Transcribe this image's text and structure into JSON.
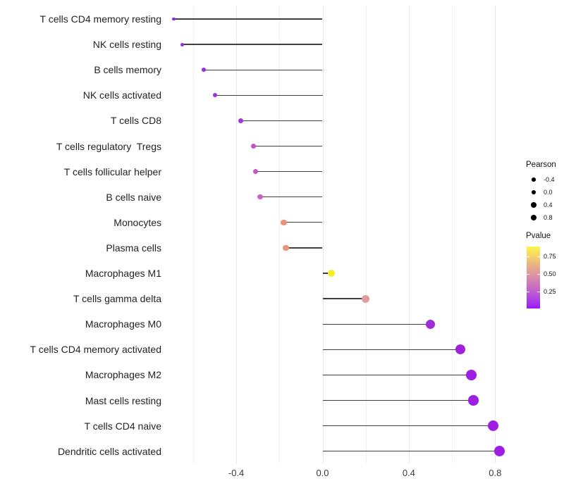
{
  "figure": {
    "background": "#ffffff",
    "legend_pearson": {
      "title": "Pearson",
      "dot_color": "#000000",
      "entries": [
        {
          "label": "-0.4",
          "diameter": 5.6
        },
        {
          "label": "0.0",
          "diameter": 6.9
        },
        {
          "label": "0.4",
          "diameter": 7.9
        },
        {
          "label": "0.8",
          "diameter": 8.9
        }
      ]
    },
    "legend_pvalue": {
      "title": "Pvalue",
      "labels": [
        "0.75",
        "0.50",
        "0.25"
      ],
      "gradient_top_to_bottom": [
        "#fcf44a",
        "#f8dd5f",
        "#f0c376",
        "#e7ab8b",
        "#de969e",
        "#d280b3",
        "#c76cc4",
        "#ba53d6",
        "#ab38e8",
        "#9b16f9"
      ]
    }
  },
  "chart_data": {
    "type": "lollipop",
    "orientation": "horizontal",
    "title": "",
    "xlabel": "",
    "ylabel": "",
    "x_tick_labels": [
      "-0.4",
      "0.0",
      "0.4",
      "0.8"
    ],
    "x_major_ticks": [
      -0.4,
      0.0,
      0.4,
      0.8
    ],
    "x_minor_ticks": [
      -0.6,
      -0.2,
      0.2,
      0.6
    ],
    "xlim": [
      -0.77,
      0.9
    ],
    "grid": "vertical major+minor, light gray on white",
    "legend_position": "right",
    "size_encodes": "Pearson correlation",
    "color_encodes": "Pvalue (yellow high to purple low)",
    "points": [
      {
        "label": "T cells CD4 memory resting",
        "pearson": -0.69,
        "pvalue_est": 0.03,
        "color": "#8f2ce4"
      },
      {
        "label": "NK cells resting",
        "pearson": -0.65,
        "pvalue_est": 0.04,
        "color": "#962fe1"
      },
      {
        "label": "B cells memory",
        "pearson": -0.55,
        "pvalue_est": 0.05,
        "color": "#9a31de"
      },
      {
        "label": "NK cells activated",
        "pearson": -0.5,
        "pvalue_est": 0.07,
        "color": "#9d33db"
      },
      {
        "label": "T cells CD8",
        "pearson": -0.38,
        "pvalue_est": 0.1,
        "color": "#a637d6"
      },
      {
        "label": "T cells regulatory  Tregs",
        "pearson": -0.32,
        "pvalue_est": 0.22,
        "color": "#c254c9"
      },
      {
        "label": "T cells follicular helper",
        "pearson": -0.31,
        "pvalue_est": 0.23,
        "color": "#c456c8"
      },
      {
        "label": "B cells naive",
        "pearson": -0.29,
        "pvalue_est": 0.26,
        "color": "#cb62c4"
      },
      {
        "label": "Monocytes",
        "pearson": -0.18,
        "pvalue_est": 0.55,
        "color": "#e8917c"
      },
      {
        "label": "Plasma cells",
        "pearson": -0.17,
        "pvalue_est": 0.56,
        "color": "#e9937b"
      },
      {
        "label": "Macrophages M1",
        "pearson": 0.04,
        "pvalue_est": 0.85,
        "color": "#f2ee26"
      },
      {
        "label": "T cells gamma delta",
        "pearson": 0.2,
        "pvalue_est": 0.48,
        "color": "#e29b9c"
      },
      {
        "label": "Macrophages M0",
        "pearson": 0.5,
        "pvalue_est": 0.05,
        "color": "#9e2cdb"
      },
      {
        "label": "T cells CD4 memory activated",
        "pearson": 0.64,
        "pvalue_est": 0.02,
        "color": "#9d23df"
      },
      {
        "label": "Macrophages M2",
        "pearson": 0.69,
        "pvalue_est": 0.02,
        "color": "#9d20e1"
      },
      {
        "label": "Mast cells resting",
        "pearson": 0.7,
        "pvalue_est": 0.02,
        "color": "#9d20e1"
      },
      {
        "label": "T cells CD4 naive",
        "pearson": 0.79,
        "pvalue_est": 0.015,
        "color": "#9e1ee3"
      },
      {
        "label": "Dendritic cells activated",
        "pearson": 0.82,
        "pvalue_est": 0.01,
        "color": "#9f1de4"
      }
    ]
  }
}
